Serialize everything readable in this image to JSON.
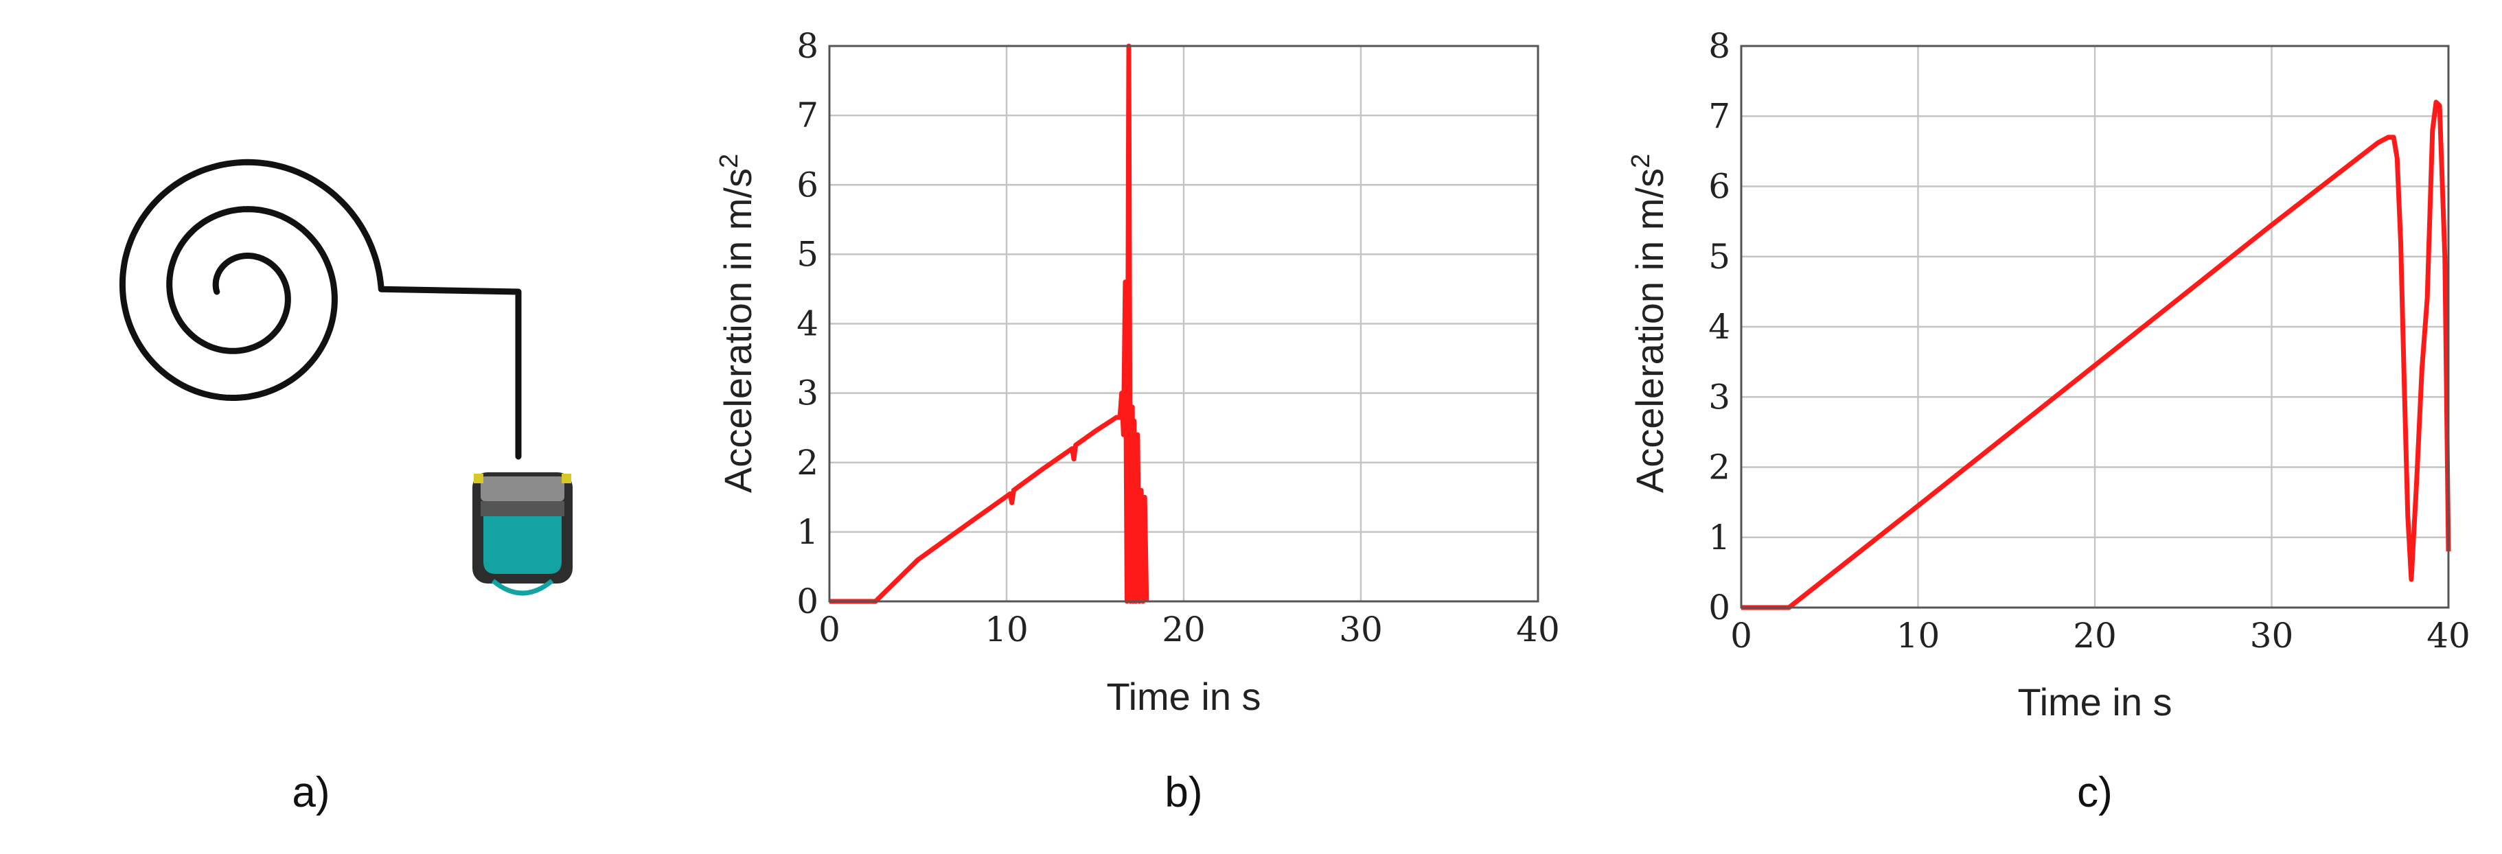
{
  "panels": [
    {
      "label": "a)"
    },
    {
      "label": "b)"
    },
    {
      "label": "c)"
    }
  ],
  "colors": {
    "line": "#ff1a1a",
    "spiral": "#111111",
    "vehicle_body": "#2d2d2d",
    "vehicle_tray": "#14a3a3"
  },
  "icons": {
    "path": "spiral-path-icon",
    "vehicle": "vehicle-icon"
  },
  "chart_data": [
    {
      "type": "line",
      "panel": "b)",
      "xlabel": "Time in s",
      "ylabel": "Acceleration in m/s²",
      "xlim": [
        0,
        40
      ],
      "ylim": [
        0,
        8
      ],
      "xticks": [
        0,
        10,
        20,
        30,
        40
      ],
      "yticks": [
        0,
        1,
        2,
        3,
        4,
        5,
        6,
        7,
        8
      ],
      "grid": true,
      "series": [
        {
          "x": [
            0,
            2.6,
            5,
            8,
            10.2,
            10.3,
            10.4,
            12,
            13.7,
            13.8,
            13.9,
            15,
            16.2,
            16.4,
            16.5,
            16.6,
            16.7,
            16.8,
            16.9,
            17.0,
            17.1,
            17.15,
            17.2,
            17.3,
            17.4,
            17.5,
            17.6,
            17.7,
            17.8,
            17.9
          ],
          "y": [
            0,
            0,
            0.6,
            1.15,
            1.55,
            1.42,
            1.6,
            1.9,
            2.2,
            2.05,
            2.25,
            2.45,
            2.65,
            2.65,
            3.0,
            2.4,
            4.6,
            0,
            8.0,
            0,
            2.8,
            0,
            2.6,
            0,
            2.4,
            0,
            1.6,
            0,
            1.5,
            0
          ]
        }
      ]
    },
    {
      "type": "line",
      "panel": "c)",
      "xlabel": "Time in s",
      "ylabel": "Acceleration in m/s²",
      "xlim": [
        0,
        40
      ],
      "ylim": [
        0,
        8
      ],
      "xticks": [
        0,
        10,
        20,
        30,
        40
      ],
      "yticks": [
        0,
        1,
        2,
        3,
        4,
        5,
        6,
        7,
        8
      ],
      "grid": true,
      "series": [
        {
          "x": [
            0,
            2.7,
            10,
            20,
            30,
            36,
            36.6,
            36.9,
            37.1,
            37.3,
            37.5,
            37.7,
            37.9,
            38.2,
            38.5,
            38.8,
            39.1,
            39.3,
            39.5,
            39.8,
            40
          ],
          "y": [
            0,
            0,
            1.45,
            3.45,
            5.45,
            6.62,
            6.7,
            6.7,
            6.4,
            5.2,
            3.2,
            1.3,
            0.4,
            1.8,
            3.4,
            4.4,
            6.8,
            7.2,
            7.15,
            5.0,
            0.8
          ]
        }
      ]
    }
  ]
}
